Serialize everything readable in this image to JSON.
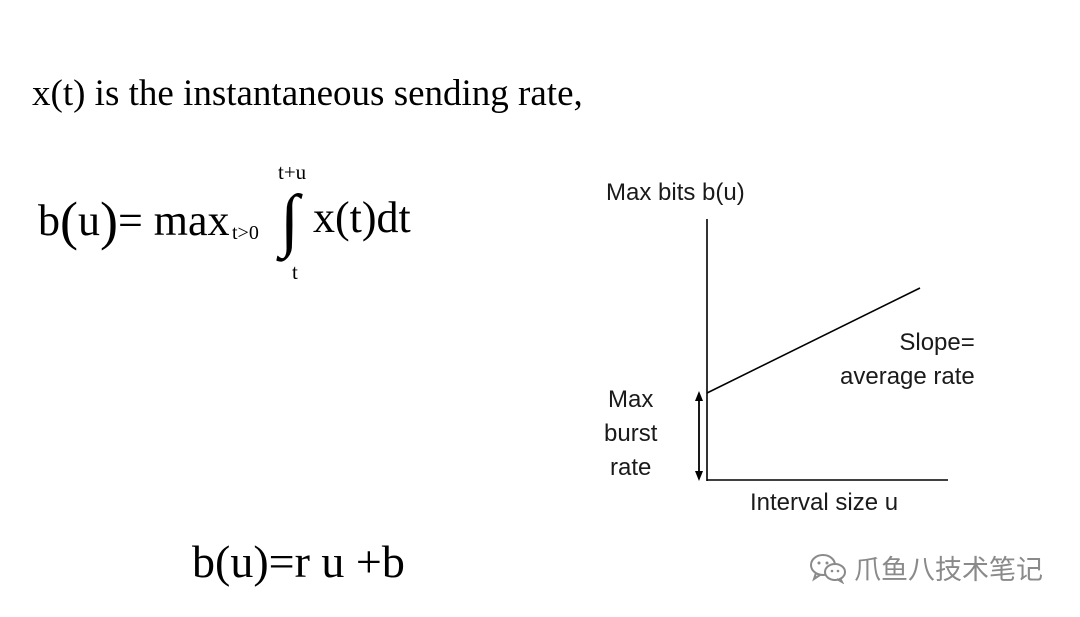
{
  "intro": "x(t) is the instantaneous sending rate,",
  "equation": {
    "lhs_name": "b",
    "lhs_arg": "u",
    "lhs_equals": "= max",
    "subscript": "t>0",
    "integral_upper": "t+u",
    "integral_symbol": "∫",
    "integral_lower": "t",
    "integrand": "x(t)dt"
  },
  "linear_equation": "b(u)=r u +b",
  "diagram": {
    "y_axis_label": "Max bits b(u)",
    "x_axis_label": "Interval size u",
    "burst_label_lines": [
      "Max",
      "burst",
      "rate"
    ],
    "slope_label_lines": [
      "Slope=",
      "average rate"
    ]
  },
  "watermark": {
    "text": "爪鱼八技术笔记",
    "icon": "wechat-icon",
    "color": "#8a8a8a"
  }
}
